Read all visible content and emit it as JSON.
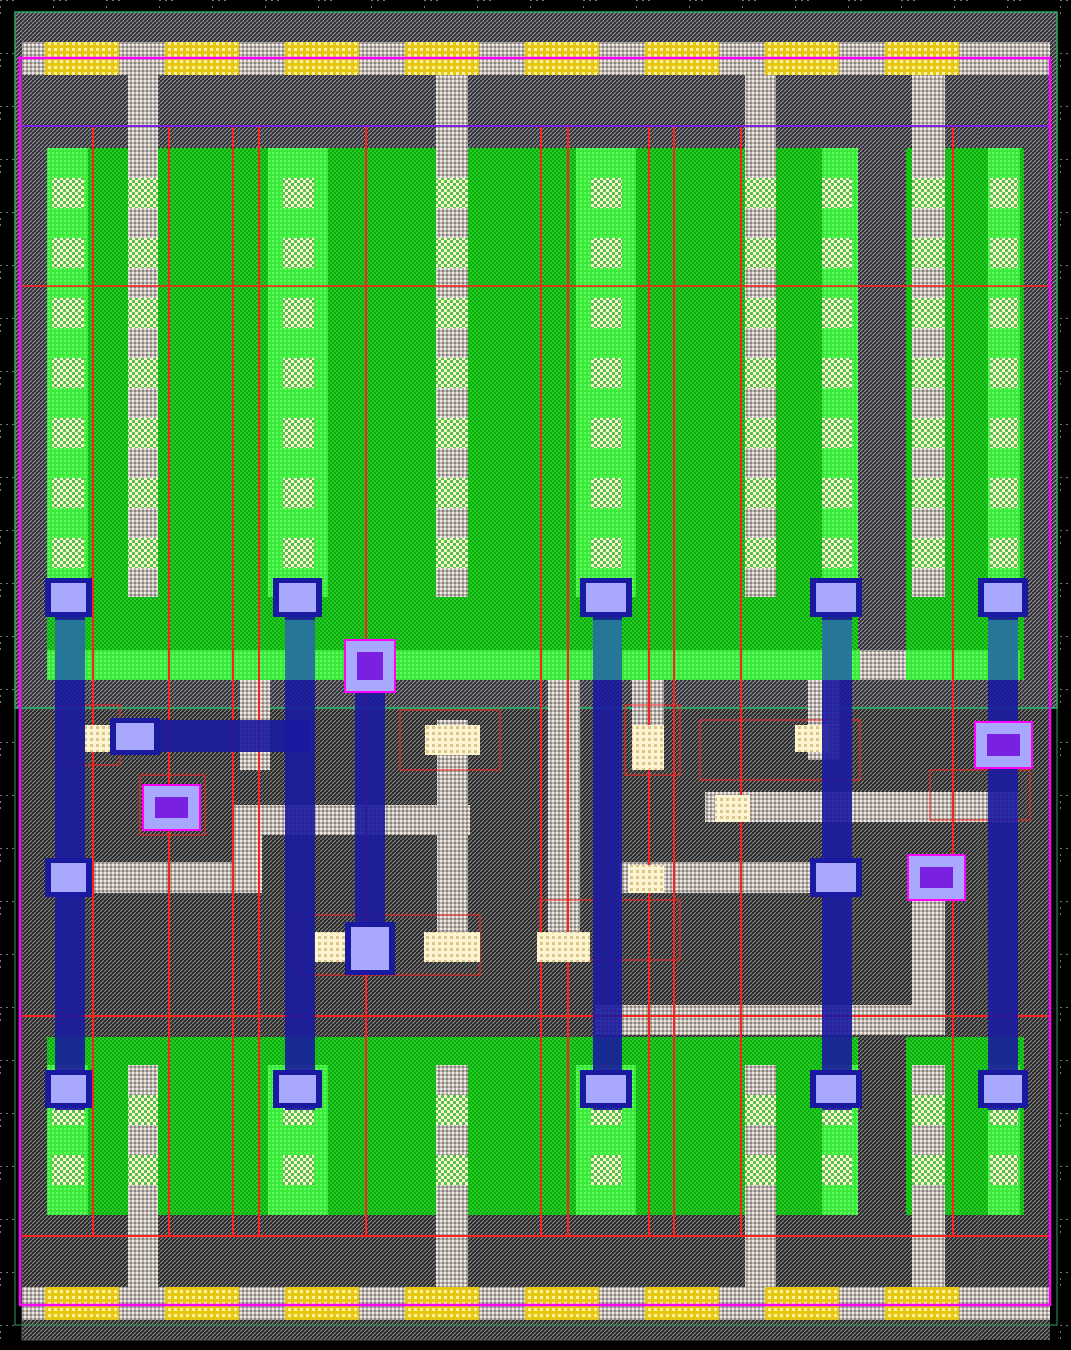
{
  "view": "ic-layout",
  "layers": {
    "background": "#000000",
    "grid_dot": "#8a8a8a",
    "cell_boundary": "#ff00ff",
    "nwell_outline": "#1fc06a",
    "substrate_hatch": "#7a7a7a",
    "active": "#13b813",
    "active_light": "#3cf03c",
    "contact_fill": "#fff8d0",
    "poly": "#ff2020",
    "metal1": "#d8d0c8",
    "metal2": "#1a1aa0",
    "metal2_contact": "#a8a8ff",
    "via": "#7a20e0",
    "rail_contact": "#e6c814",
    "rail": "#e8e0d8"
  }
}
